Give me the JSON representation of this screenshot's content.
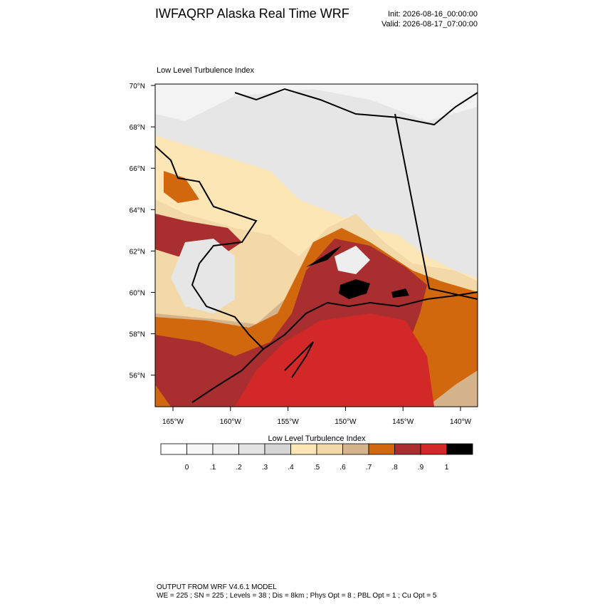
{
  "header": {
    "title": "IWFAQRP Alaska Real Time WRF",
    "init": "Init: 2026-08-16_00:00:00",
    "valid": "Valid: 2026-08-17_07:00:00"
  },
  "map": {
    "title": "Low Level Turbulence Index",
    "lat_labels": [
      "70°N",
      "68°N",
      "66°N",
      "64°N",
      "62°N",
      "60°N",
      "58°N",
      "56°N"
    ],
    "lon_labels": [
      "165°W",
      "160°W",
      "155°W",
      "150°W",
      "145°W",
      "140°W"
    ]
  },
  "colorbar": {
    "title": "Low Level Turbulence Index",
    "colors": [
      "#ffffff",
      "#f7f7f7",
      "#efefef",
      "#e3e3e3",
      "#d5d5d5",
      "#fde6b6",
      "#f3d8a8",
      "#d5b48c",
      "#d2680e",
      "#a82e30",
      "#d32828",
      "#000000"
    ],
    "ticks": [
      0,
      {
        "value": 0.1,
        "label": ".1"
      },
      {
        "value": 0.2,
        "label": ".2"
      },
      {
        "value": 0.3,
        "label": ".3"
      },
      {
        "value": 0.4,
        "label": ".4"
      },
      {
        "value": 0.5,
        "label": ".5"
      },
      {
        "value": 0.6,
        "label": ".6"
      },
      {
        "value": 0.7,
        "label": ".7"
      },
      {
        "value": 0.8,
        "label": ".8"
      },
      {
        "value": 0.9,
        "label": ".9"
      },
      1
    ]
  },
  "footer": {
    "line1": "OUTPUT FROM WRF V4.6.1 MODEL",
    "line2": "WE = 225 ; SN = 225 ; Levels = 38 ; Dis = 8km ; Phys Opt = 8 ; PBL Opt = 1 ; Cu Opt = 5"
  }
}
